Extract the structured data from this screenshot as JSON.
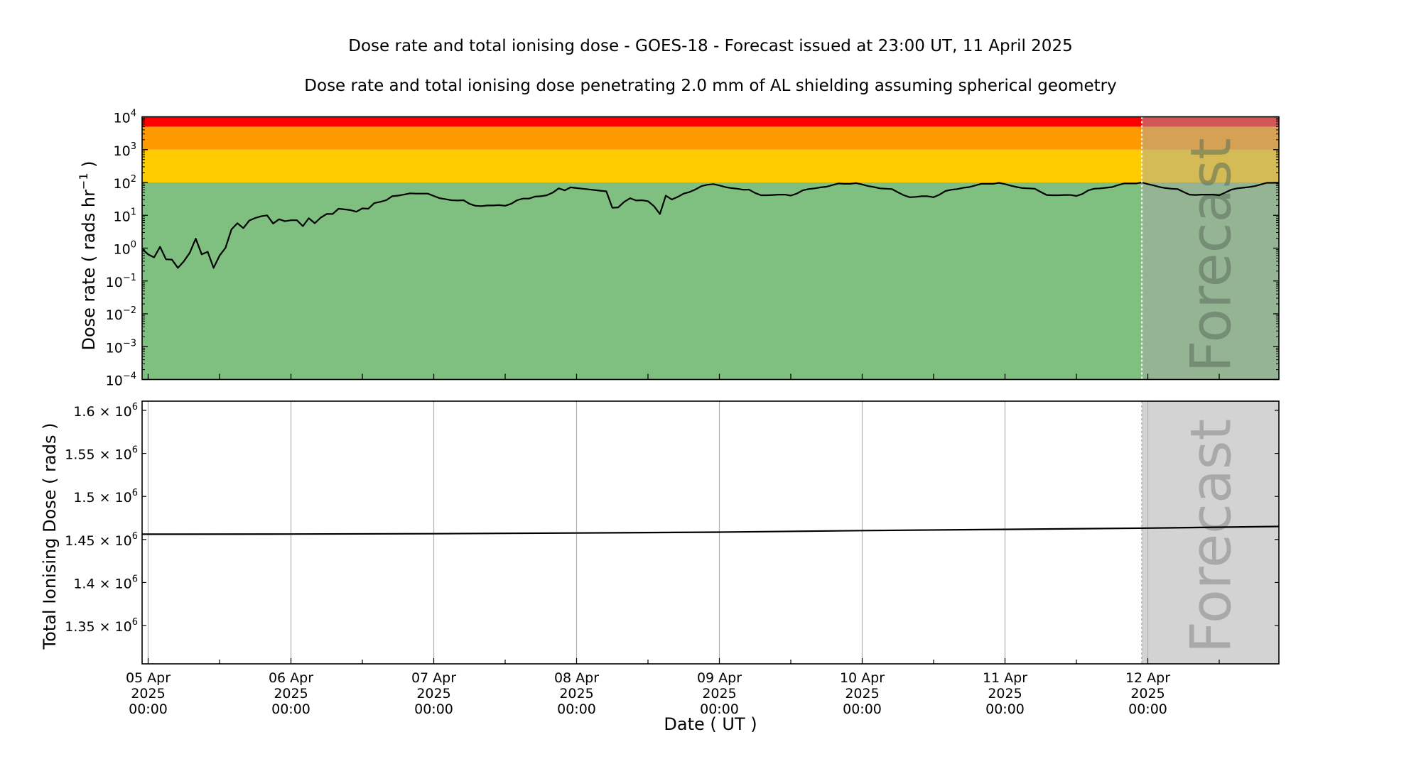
{
  "title": "Dose rate and total ionising dose - GOES-18 - Forecast issued at 23:00 UT, 11 April 2025",
  "subtitle": "Dose rate and total ionising dose penetrating 2.0 mm of AL shielding assuming spherical geometry",
  "xlabel": "Date ( UT )",
  "xticks": [
    {
      "hour": 0,
      "day": "05 Apr",
      "year": "2025",
      "time": "00:00"
    },
    {
      "hour": 24,
      "day": "06 Apr",
      "year": "2025",
      "time": "00:00"
    },
    {
      "hour": 48,
      "day": "07 Apr",
      "year": "2025",
      "time": "00:00"
    },
    {
      "hour": 72,
      "day": "08 Apr",
      "year": "2025",
      "time": "00:00"
    },
    {
      "hour": 96,
      "day": "09 Apr",
      "year": "2025",
      "time": "00:00"
    },
    {
      "hour": 120,
      "day": "10 Apr",
      "year": "2025",
      "time": "00:00"
    },
    {
      "hour": 144,
      "day": "11 Apr",
      "year": "2025",
      "time": "00:00"
    },
    {
      "hour": 168,
      "day": "12 Apr",
      "year": "2025",
      "time": "00:00"
    }
  ],
  "chart_data": [
    {
      "type": "line",
      "panel": "top",
      "ylabel_pre": "Dose rate ( rads hr",
      "ylabel_sup": "−1",
      "ylabel_post": " )",
      "yscale": "log",
      "ylim": [
        0.0001,
        10000
      ],
      "x_unit": "hours since 05 Apr 2025 00:00 UT",
      "xlim": [
        -1,
        190
      ],
      "yticks": [
        {
          "value": -4,
          "base": "10",
          "exp": "−4"
        },
        {
          "value": -3,
          "base": "10",
          "exp": "−3"
        },
        {
          "value": -2,
          "base": "10",
          "exp": "−2"
        },
        {
          "value": -1,
          "base": "10",
          "exp": "−1"
        },
        {
          "value": 0,
          "base": "10",
          "exp": "0"
        },
        {
          "value": 1,
          "base": "10",
          "exp": "1"
        },
        {
          "value": 2,
          "base": "10",
          "exp": "2"
        },
        {
          "value": 3,
          "base": "10",
          "exp": "3"
        },
        {
          "value": 4,
          "base": "10",
          "exp": "4"
        }
      ],
      "bands": [
        {
          "from": 0.0001,
          "to": 100,
          "color": "#7fbf7f"
        },
        {
          "from": 100,
          "to": 1000,
          "color": "#ffcc00"
        },
        {
          "from": 1000,
          "to": 5000,
          "color": "#ff9900"
        },
        {
          "from": 5000,
          "to": 10000,
          "color": "#ff0000"
        }
      ],
      "forecast_start_hour": 167,
      "forecast_label": "Forecast",
      "x_start_hour": -1,
      "x_step_hours": 1,
      "log10_values": [
        -0.02,
        -0.19,
        -0.28,
        0.04,
        -0.34,
        -0.35,
        -0.6,
        -0.4,
        -0.14,
        0.29,
        -0.19,
        -0.11,
        -0.6,
        -0.23,
        0.01,
        0.57,
        0.76,
        0.61,
        0.84,
        0.92,
        0.97,
        1.0,
        0.75,
        0.88,
        0.82,
        0.85,
        0.85,
        0.67,
        0.91,
        0.76,
        0.93,
        1.04,
        1.04,
        1.2,
        1.18,
        1.16,
        1.11,
        1.21,
        1.2,
        1.37,
        1.41,
        1.46,
        1.58,
        1.6,
        1.63,
        1.67,
        1.66,
        1.66,
        1.66,
        1.59,
        1.52,
        1.49,
        1.46,
        1.45,
        1.46,
        1.35,
        1.29,
        1.28,
        1.3,
        1.3,
        1.31,
        1.29,
        1.35,
        1.46,
        1.51,
        1.51,
        1.57,
        1.58,
        1.61,
        1.69,
        1.82,
        1.76,
        1.85,
        1.83,
        1.81,
        1.79,
        1.77,
        1.75,
        1.73,
        1.23,
        1.24,
        1.41,
        1.52,
        1.45,
        1.46,
        1.43,
        1.28,
        1.04,
        1.6,
        1.48,
        1.56,
        1.66,
        1.71,
        1.79,
        1.89,
        1.93,
        1.95,
        1.91,
        1.86,
        1.83,
        1.81,
        1.78,
        1.78,
        1.68,
        1.61,
        1.61,
        1.62,
        1.63,
        1.63,
        1.6,
        1.66,
        1.76,
        1.8,
        1.82,
        1.85,
        1.87,
        1.92,
        1.97,
        1.96,
        1.96,
        1.98,
        1.94,
        1.89,
        1.86,
        1.82,
        1.81,
        1.8,
        1.7,
        1.61,
        1.55,
        1.56,
        1.58,
        1.58,
        1.55,
        1.63,
        1.74,
        1.78,
        1.8,
        1.84,
        1.86,
        1.91,
        1.96,
        1.96,
        1.96,
        1.99,
        1.95,
        1.9,
        1.86,
        1.83,
        1.82,
        1.81,
        1.71,
        1.62,
        1.61,
        1.61,
        1.62,
        1.62,
        1.59,
        1.65,
        1.76,
        1.81,
        1.82,
        1.84,
        1.86,
        1.92,
        1.97,
        1.97,
        1.97,
        2.0,
        1.95,
        1.91,
        1.86,
        1.83,
        1.81,
        1.8,
        1.71,
        1.63,
        1.62,
        1.63,
        1.63,
        1.63,
        1.61,
        1.69,
        1.78,
        1.82,
        1.84,
        1.86,
        1.89,
        1.94,
        1.99,
        1.99,
        1.99
      ]
    },
    {
      "type": "line",
      "panel": "bottom",
      "ylabel": "Total Ionising Dose ( rads )",
      "ylim": [
        1305500,
        1610700
      ],
      "x_unit": "hours since 05 Apr 2025 00:00 UT",
      "xlim": [
        -1,
        190
      ],
      "grid": "x-major",
      "yticks": [
        {
          "value": 1350000,
          "mant": "1.35 × 10",
          "exp": "6"
        },
        {
          "value": 1400000,
          "mant": "1.4 × 10",
          "exp": "6"
        },
        {
          "value": 1450000,
          "mant": "1.45 × 10",
          "exp": "6"
        },
        {
          "value": 1500000,
          "mant": "1.5 × 10",
          "exp": "6"
        },
        {
          "value": 1550000,
          "mant": "1.55 × 10",
          "exp": "6"
        },
        {
          "value": 1600000,
          "mant": "1.6 × 10",
          "exp": "6"
        }
      ],
      "forecast_start_hour": 167,
      "forecast_label": "Forecast",
      "x": [
        -1,
        24,
        48,
        72,
        96,
        120,
        144,
        168,
        190
      ],
      "values": [
        1456100,
        1456300,
        1456700,
        1457500,
        1458500,
        1460300,
        1461700,
        1463200,
        1465100
      ]
    }
  ]
}
